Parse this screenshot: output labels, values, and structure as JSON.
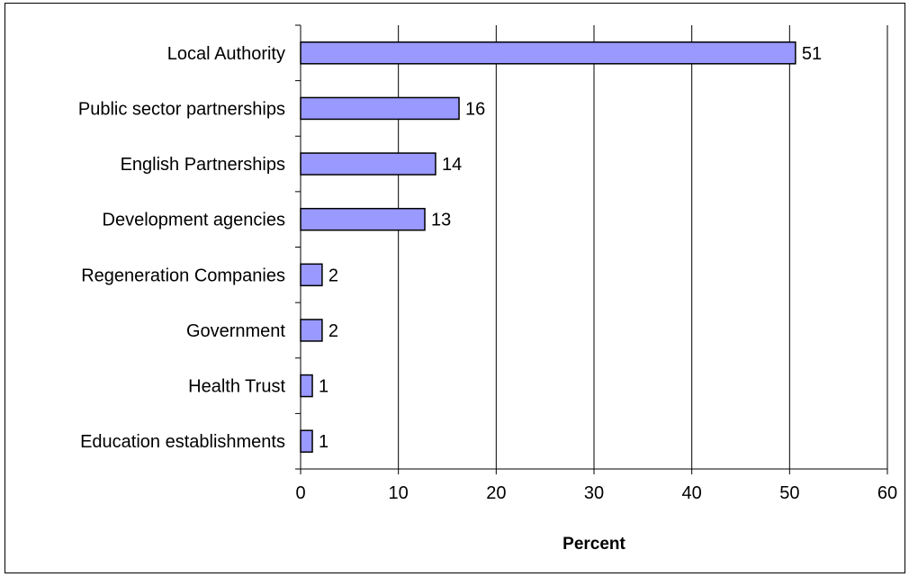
{
  "chart_data": {
    "type": "bar",
    "orientation": "horizontal",
    "categories": [
      "Local Authority",
      "Public sector partnerships",
      "English Partnerships",
      "Development agencies",
      "Regeneration Companies",
      "Government",
      "Health Trust",
      "Education establishments"
    ],
    "values": [
      50.6,
      16.2,
      13.8,
      12.7,
      2.2,
      2.2,
      1.2,
      1.2
    ],
    "data_labels": [
      "51",
      "16",
      "14",
      "13",
      "2",
      "2",
      "1",
      "1"
    ],
    "xlabel": "Percent",
    "ylabel": "",
    "xlim": [
      0,
      60
    ],
    "x_ticks": [
      0,
      10,
      20,
      30,
      40,
      50,
      60
    ],
    "x_tick_labels": [
      "0",
      "10",
      "20",
      "30",
      "40",
      "50",
      "60"
    ],
    "grid": "vertical gridlines",
    "legend": "none",
    "colors": {
      "bar_fill": "#9999ff",
      "bar_stroke": "#000000",
      "gridline": "#000000",
      "background": "#ffffff"
    }
  }
}
